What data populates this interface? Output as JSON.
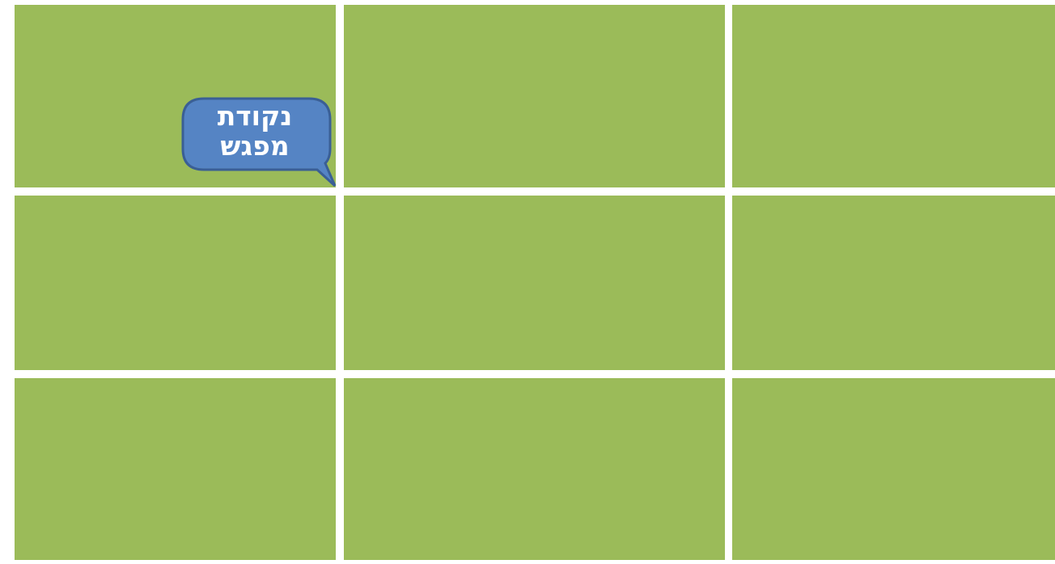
{
  "callout": {
    "lines": [
      "נקודת",
      "מפגש"
    ]
  }
}
